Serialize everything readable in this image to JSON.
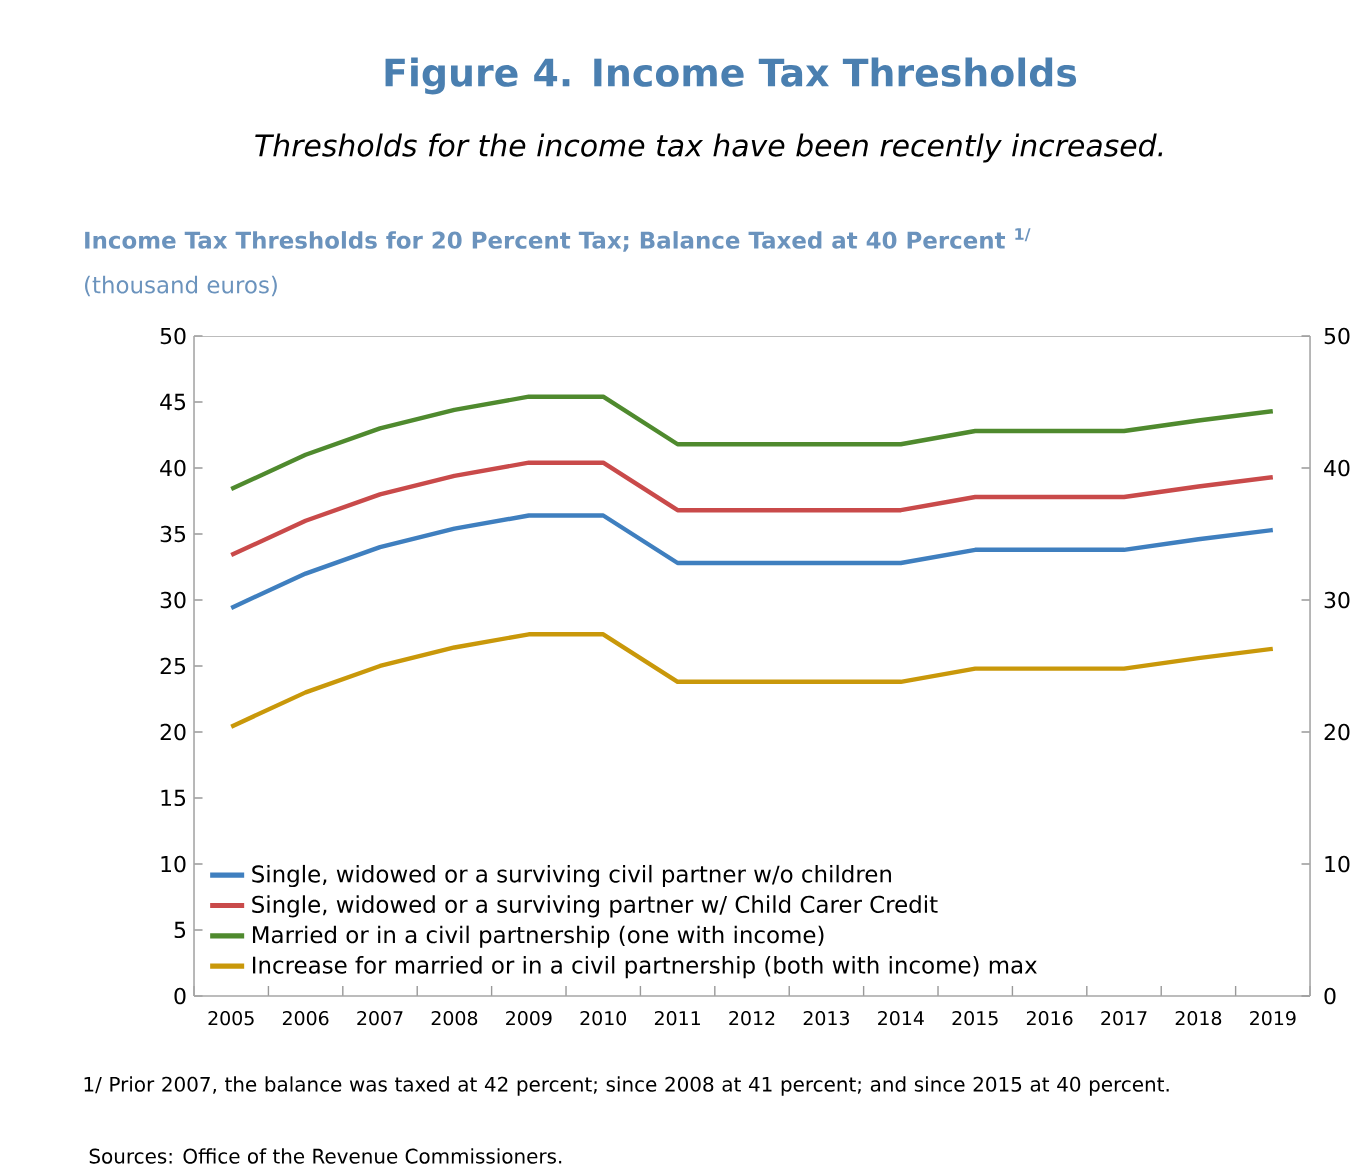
{
  "chart_data": {
    "type": "line",
    "title": "Figure 4. Income Tax Thresholds",
    "subtitle": "Thresholds for the income tax have been recently increased.",
    "annotations": [
      "Income Tax Thresholds for 20 Percent Tax; Balance Taxed at 40 Percent $^{1/}$",
      "(thousand euros)",
      "1/ Prior 2007, the balance was taxed at 42 percent; since 2008 at 41 percent; and since 2015 at 40 percent.",
      "Sources: Office of the Revenue Commissioners."
    ],
    "categories": [
      "2005",
      "2006",
      "2007",
      "2008",
      "2009",
      "2010",
      "2011",
      "2012",
      "2013",
      "2014",
      "2015",
      "2016",
      "2017",
      "2018",
      "2019"
    ],
    "series": [
      {
        "name": "Single, widowed or a surviving civil partner w/o children",
        "color": "#3f7fbf",
        "values": [
          29.4,
          32,
          34,
          35.4,
          36.4,
          36.4,
          32.8,
          32.8,
          32.8,
          32.8,
          33.8,
          33.8,
          33.8,
          34.6,
          35.3
        ]
      },
      {
        "name": "Single, widowed or a surviving partner w/ Child Carer Credit",
        "color": "#c94a4a",
        "values": [
          33.4,
          36,
          38,
          39.4,
          40.4,
          40.4,
          36.8,
          36.8,
          36.8,
          36.8,
          37.8,
          37.8,
          37.8,
          38.6,
          39.3
        ]
      },
      {
        "name": "Married or in a civil partnership (one with income)",
        "color": "#4f8a2e",
        "values": [
          38.4,
          41,
          43,
          44.4,
          45.4,
          45.4,
          41.8,
          41.8,
          41.8,
          41.8,
          42.8,
          42.8,
          42.8,
          43.6,
          44.3
        ]
      },
      {
        "name": "Increase for married or in a civil partnership (both with income) max",
        "color": "#c9980a",
        "values": [
          20.4,
          23,
          25,
          26.4,
          27.4,
          27.4,
          23.8,
          23.8,
          23.8,
          23.8,
          24.8,
          24.8,
          24.8,
          25.6,
          26.3
        ]
      }
    ],
    "ylim": [
      0,
      50
    ],
    "yticks": [
      0,
      5,
      10,
      15,
      20,
      25,
      30,
      35,
      40,
      45,
      50
    ],
    "y2lim": [
      0,
      50
    ],
    "y2ticks": [
      0,
      10,
      20,
      30,
      40,
      50
    ],
    "legend": "bottom left",
    "marker": "none",
    "line_style": "solid"
  }
}
